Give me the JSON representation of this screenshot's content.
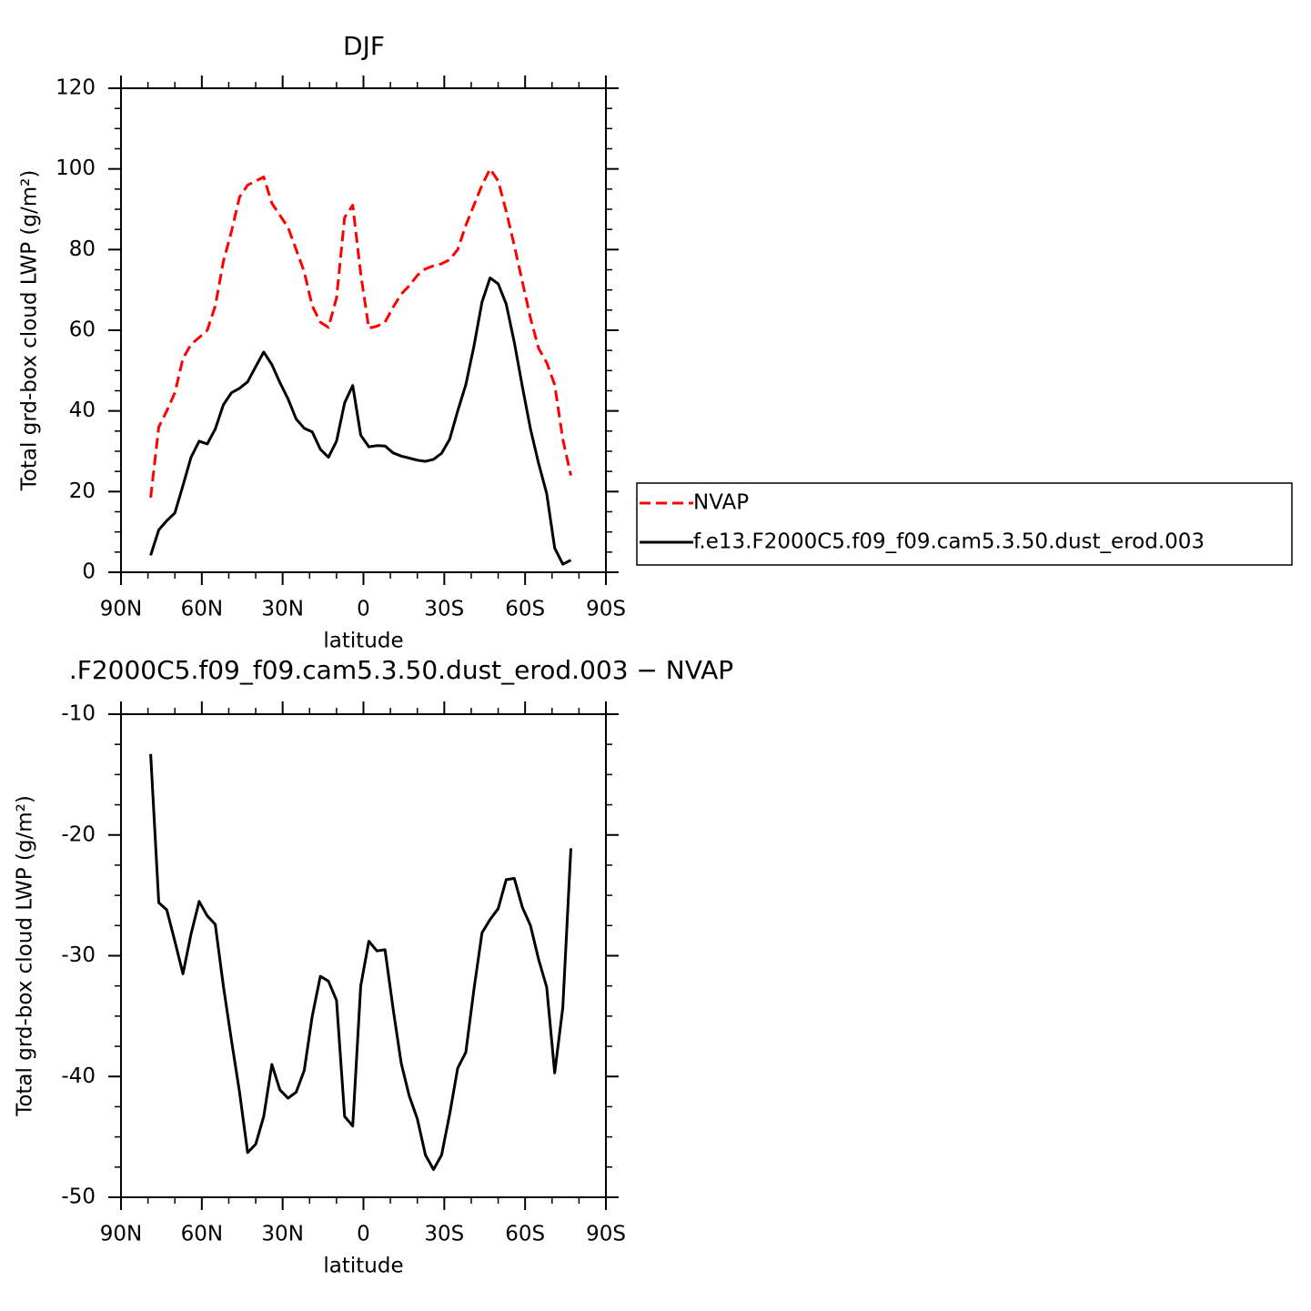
{
  "chart_data": [
    {
      "type": "line",
      "title": "DJF",
      "xlabel": "latitude",
      "ylabel": "Total grd-box cloud LWP (g/m²)",
      "x": [
        79,
        76,
        73,
        70,
        67,
        64,
        61,
        58,
        55,
        52,
        49,
        46,
        43,
        40,
        37,
        34,
        31,
        28,
        25,
        22,
        19,
        16,
        13,
        10,
        7,
        4,
        1,
        -2,
        -5,
        -8,
        -11,
        -14,
        -17,
        -20,
        -23,
        -26,
        -29,
        -32,
        -35,
        -38,
        -41,
        -44,
        -47,
        -50,
        -53,
        -56,
        -59,
        -62,
        -65,
        -68,
        -71,
        -74,
        -77
      ],
      "xlim": [
        90,
        -90
      ],
      "xticks": [
        {
          "value": 90,
          "label": "90N"
        },
        {
          "value": 60,
          "label": "60N"
        },
        {
          "value": 30,
          "label": "30N"
        },
        0,
        {
          "value": -30,
          "label": "30S"
        },
        {
          "value": -60,
          "label": "60S"
        },
        {
          "value": -90,
          "label": "90S"
        }
      ],
      "ylim": [
        0,
        120
      ],
      "yticks": [
        0,
        20,
        40,
        60,
        80,
        100,
        120
      ],
      "legend": "right",
      "series": [
        {
          "name": "NVAP",
          "color": "#ff0000",
          "dash": "dashed",
          "values": [
            18.5,
            36,
            40,
            44.5,
            53,
            56.5,
            58.2,
            60,
            66,
            77,
            84.5,
            93,
            96,
            97,
            98,
            91.5,
            88.5,
            85.5,
            80,
            74.5,
            66,
            62,
            60.7,
            68,
            88,
            91,
            74,
            60.5,
            61,
            62,
            65.7,
            69,
            71,
            73.6,
            75.2,
            76,
            76.5,
            77.5,
            80,
            86,
            91,
            96,
            100,
            97,
            89.5,
            81,
            72,
            63,
            55.5,
            52,
            46.5,
            33,
            24
          ]
        },
        {
          "name": "f.e13.F2000C5.f09_f09.cam5.3.50.dust_erod.003",
          "color": "#000000",
          "dash": "solid",
          "values": [
            4.2,
            10.5,
            12.8,
            14.7,
            21.5,
            28.5,
            32.5,
            31.8,
            35.5,
            41.5,
            44.5,
            45.6,
            47.2,
            51,
            54.6,
            51.5,
            47,
            43,
            38,
            35.7,
            34.8,
            30.5,
            28.5,
            32.5,
            42,
            46.3,
            34,
            31.1,
            31.4,
            31.3,
            29.6,
            28.8,
            28.3,
            27.8,
            27.5,
            28,
            29.5,
            33,
            40,
            46.5,
            56,
            67,
            73,
            71.5,
            66.5,
            57,
            46,
            35.5,
            27,
            19.5,
            6,
            2,
            3
          ]
        }
      ]
    },
    {
      "type": "line",
      "title": ".F2000C5.f09_f09.cam5.3.50.dust_erod.003 − NVAP",
      "xlabel": "latitude",
      "ylabel": "Total grd-box cloud LWP (g/m²)",
      "x": [
        79,
        76,
        73,
        70,
        67,
        64,
        61,
        58,
        55,
        52,
        49,
        46,
        43,
        40,
        37,
        34,
        31,
        28,
        25,
        22,
        19,
        16,
        13,
        10,
        7,
        4,
        1,
        -2,
        -5,
        -8,
        -11,
        -14,
        -17,
        -20,
        -23,
        -26,
        -29,
        -32,
        -35,
        -38,
        -41,
        -44,
        -47,
        -50,
        -53,
        -56,
        -59,
        -62,
        -65,
        -68,
        -71,
        -74,
        -77
      ],
      "xlim": [
        90,
        -90
      ],
      "xticks": [
        {
          "value": 90,
          "label": "90N"
        },
        {
          "value": 60,
          "label": "60N"
        },
        {
          "value": 30,
          "label": "30N"
        },
        0,
        {
          "value": -30,
          "label": "30S"
        },
        {
          "value": -60,
          "label": "60S"
        },
        {
          "value": -90,
          "label": "90S"
        }
      ],
      "ylim": [
        -50,
        -10
      ],
      "yticks": [
        -50,
        -40,
        -30,
        -20,
        -10
      ],
      "color": "#000000",
      "values": [
        -13.3,
        -25.6,
        -26.2,
        -28.8,
        -31.5,
        -28.2,
        -25.5,
        -26.7,
        -27.4,
        -32.5,
        -37,
        -41.3,
        -46.3,
        -45.6,
        -43.3,
        -39,
        -41.1,
        -41.8,
        -41.3,
        -39.5,
        -35,
        -31.7,
        -32.1,
        -33.7,
        -43.3,
        -44.1,
        -32.5,
        -28.8,
        -29.6,
        -29.5,
        -34.4,
        -38.9,
        -41.6,
        -43.5,
        -46.5,
        -47.7,
        -46.5,
        -43.1,
        -39.3,
        -38,
        -32.8,
        -28.1,
        -27,
        -26.1,
        -23.7,
        -23.6,
        -26,
        -27.5,
        -30.3,
        -32.6,
        -39.7,
        -34.3,
        -21.1
      ]
    }
  ]
}
